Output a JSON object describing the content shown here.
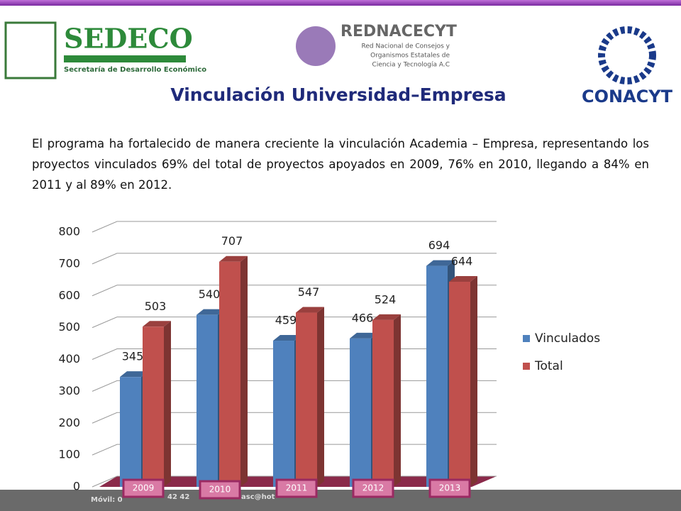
{
  "logos": {
    "sedeco": "SEDECO",
    "sedeco_sub": "Secretaría de Desarrollo Económico",
    "red": "REDNACECYT",
    "red_sub1": "Red Nacional de Consejos y",
    "red_sub2": "Organismos Estatales de",
    "red_sub3": "Ciencia y Tecnología A.C",
    "conacyt": "CONACYT"
  },
  "title": "Vinculación Universidad–Empresa",
  "paragraph": "El programa ha fortalecido de manera creciente la vinculación Academia – Empresa, representando los proyectos vinculados 69% del total de proyectos apoyados en 2009, 76% en 2010, llegando a 84% en 2011 y al 89% en 2012.",
  "footer": [
    "Móvil: 0",
    "42 42",
    "asc@hot"
  ],
  "chart_data": {
    "type": "bar",
    "categories": [
      "2009",
      "2010",
      "2011",
      "2012",
      "2013"
    ],
    "series": [
      {
        "name": "Vinculados",
        "color": "#4f81bd",
        "values": [
          345,
          540,
          459,
          466,
          694
        ]
      },
      {
        "name": "Total",
        "color": "#c0504d",
        "values": [
          503,
          707,
          547,
          524,
          644
        ]
      }
    ],
    "ylim": [
      0,
      800
    ],
    "yticks": [
      0,
      100,
      200,
      300,
      400,
      500,
      600,
      700,
      800
    ],
    "grid": true,
    "legend": "right"
  }
}
